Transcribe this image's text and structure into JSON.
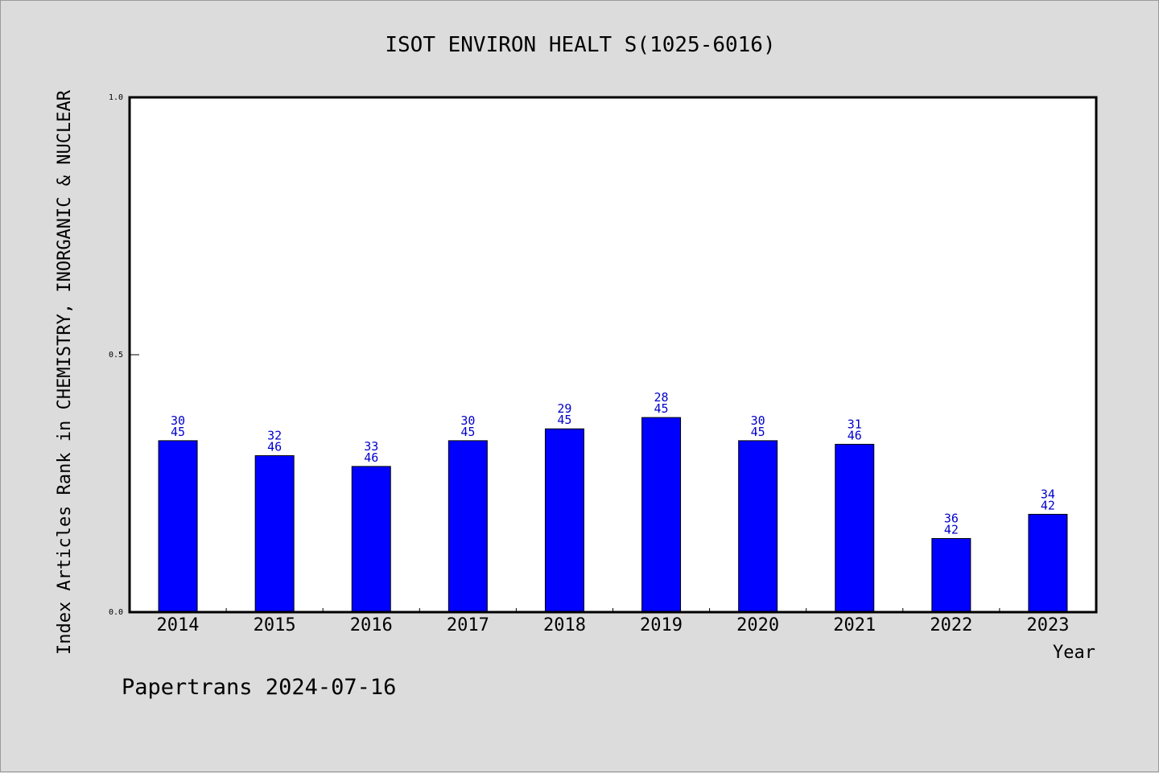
{
  "chart_data": {
    "type": "bar",
    "title": "ISOT ENVIRON HEALT S(1025-6016)",
    "xlabel": "Year",
    "ylabel": "Index Articles Rank in CHEMISTRY, INORGANIC & NUCLEAR",
    "ylim": [
      0.0,
      1.0
    ],
    "yticks": [
      "0.0",
      "0.5",
      "1.0"
    ],
    "ytick_values": [
      0.0,
      0.5,
      1.0
    ],
    "grid": false,
    "bar_color": "#0000ff",
    "label_color": "#0000cc",
    "categories": [
      "2014",
      "2015",
      "2016",
      "2017",
      "2018",
      "2019",
      "2020",
      "2021",
      "2022",
      "2023"
    ],
    "values": [
      0.333,
      0.304,
      0.283,
      0.333,
      0.356,
      0.378,
      0.333,
      0.326,
      0.143,
      0.19
    ],
    "rank": [
      "30",
      "32",
      "33",
      "30",
      "29",
      "28",
      "30",
      "31",
      "36",
      "34"
    ],
    "total": [
      "45",
      "46",
      "46",
      "45",
      "45",
      "45",
      "45",
      "46",
      "42",
      "42"
    ]
  },
  "footer": "Papertrans 2024-07-16"
}
